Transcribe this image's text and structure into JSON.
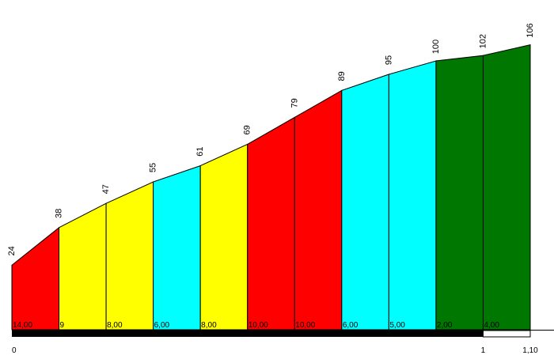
{
  "chart_data": {
    "type": "area",
    "title": "",
    "xlabel": "",
    "ylabel": "",
    "x": [
      0,
      0.1,
      0.2,
      0.3,
      0.4,
      0.5,
      0.6,
      0.7,
      0.8,
      0.9,
      1.0,
      1.1
    ],
    "y": [
      24,
      38,
      47,
      55,
      61,
      69,
      79,
      89,
      95,
      100,
      102,
      106
    ],
    "segments": [
      {
        "label": "14,00",
        "color": "#ff0000"
      },
      {
        "label": "9",
        "color": "#ffff00"
      },
      {
        "label": "8,00",
        "color": "#ffff00"
      },
      {
        "label": "6,00",
        "color": "#00ffff"
      },
      {
        "label": "8,00",
        "color": "#ffff00"
      },
      {
        "label": "10,00",
        "color": "#ff0000"
      },
      {
        "label": "10,00",
        "color": "#ff0000"
      },
      {
        "label": "6,00",
        "color": "#00ffff"
      },
      {
        "label": "5,00",
        "color": "#00ffff"
      },
      {
        "label": "2,00",
        "color": "#007700"
      },
      {
        "label": "4,00",
        "color": "#007700"
      }
    ],
    "x_tick_labels": [
      {
        "x": 0,
        "label": "0"
      },
      {
        "x": 1.0,
        "label": "1"
      },
      {
        "x": 1.1,
        "label": "1,10"
      }
    ],
    "xlim": [
      0,
      1.1
    ],
    "ylim": [
      0,
      110
    ]
  }
}
